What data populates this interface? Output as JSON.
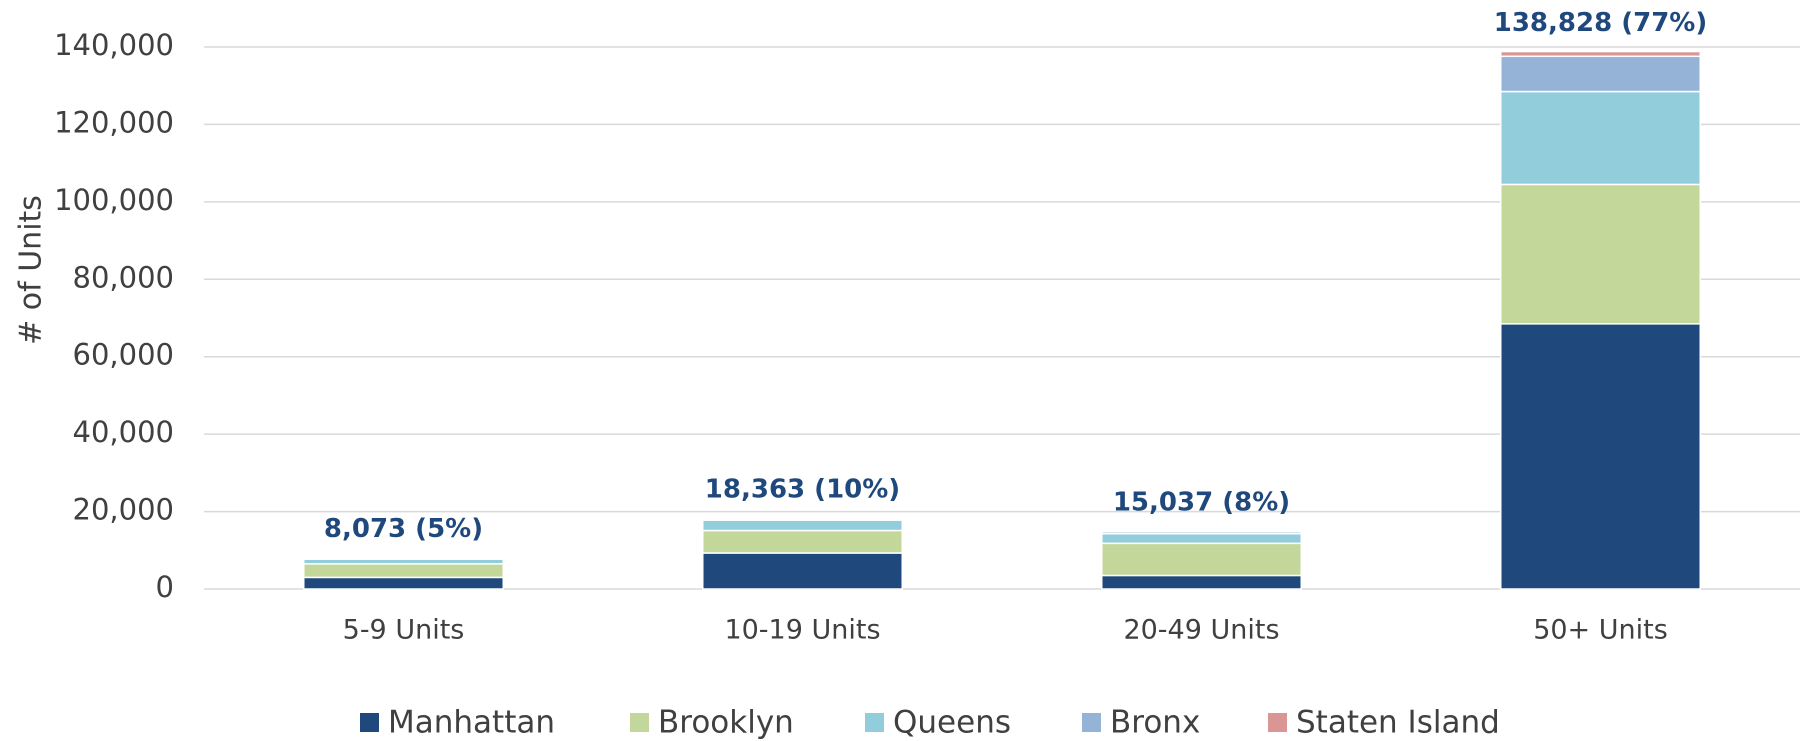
{
  "chart_data": {
    "type": "stacked_bar",
    "y_axis_label": "# of Units",
    "categories": [
      "5-9 Units",
      "10-19 Units",
      "20-49 Units",
      "50+ Units"
    ],
    "series": [
      {
        "name": "Manhattan",
        "color": "#1f497d",
        "values": [
          3000,
          9300,
          3500,
          68500
        ]
      },
      {
        "name": "Brooklyn",
        "color": "#c4d79b",
        "values": [
          3500,
          5800,
          8300,
          36000
        ]
      },
      {
        "name": "Queens",
        "color": "#92cddc",
        "values": [
          1200,
          2700,
          2500,
          24000
        ]
      },
      {
        "name": "Bronx",
        "color": "#95b3d7",
        "values": [
          250,
          400,
          500,
          9100
        ]
      },
      {
        "name": "Staten Island",
        "color": "#d99694",
        "values": [
          123,
          163,
          237,
          1228
        ]
      }
    ],
    "total_labels": [
      "8,073 (5%)",
      "18,363 (10%)",
      "15,037 (8%)",
      "138,828 (77%)"
    ],
    "ylim": [
      0,
      140000
    ],
    "yticks": [
      0,
      {
        "value": 20000,
        "label": "20,000"
      },
      {
        "value": 40000,
        "label": "40,000"
      },
      {
        "value": 60000,
        "label": "60,000"
      },
      {
        "value": 80000,
        "label": "80,000"
      },
      {
        "value": 100000,
        "label": "100,000"
      },
      {
        "value": 120000,
        "label": "120,000"
      },
      {
        "value": 140000,
        "label": "140,000"
      }
    ],
    "grid": true,
    "legend": "bottom"
  }
}
